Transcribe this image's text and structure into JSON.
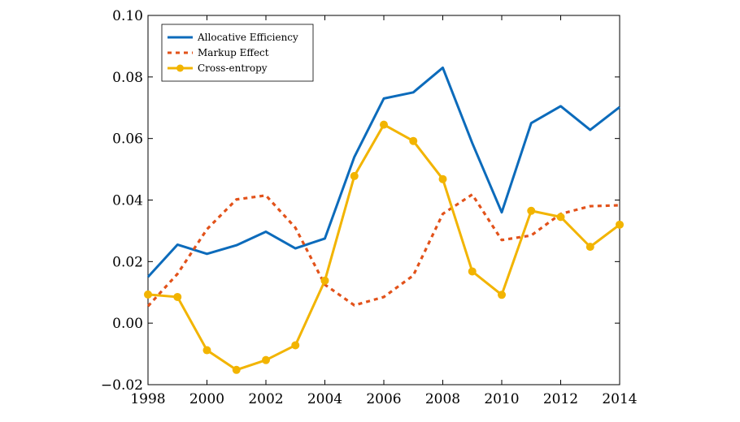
{
  "chart_data": {
    "type": "line",
    "title": "",
    "xlabel": "",
    "ylabel": "",
    "xlim": [
      1998,
      2014
    ],
    "ylim": [
      -0.02,
      0.1
    ],
    "x_ticks": [
      1998,
      2000,
      2002,
      2004,
      2006,
      2008,
      2010,
      2012,
      2014
    ],
    "x_tick_labels": [
      "1998",
      "2000",
      "2002",
      "2004",
      "2006",
      "2008",
      "2010",
      "2012",
      "2014"
    ],
    "y_ticks": [
      -0.02,
      0.0,
      0.02,
      0.04,
      0.06,
      0.08,
      0.1
    ],
    "y_tick_labels": [
      "−0.02",
      "0.00",
      "0.02",
      "0.04",
      "0.06",
      "0.08",
      "0.10"
    ],
    "grid": false,
    "legend_position": "top-left",
    "x": [
      1998,
      1999,
      2000,
      2001,
      2002,
      2003,
      2004,
      2005,
      2006,
      2007,
      2008,
      2009,
      2010,
      2011,
      2012,
      2013,
      2014
    ],
    "series": [
      {
        "name": "Allocative Efficiency",
        "color": "#0c6bbb",
        "style": "solid",
        "marker": "none",
        "values": [
          0.015,
          0.0255,
          0.0225,
          0.0253,
          0.0297,
          0.0243,
          0.0275,
          0.054,
          0.073,
          0.075,
          0.083,
          0.0585,
          0.036,
          0.065,
          0.0705,
          0.0628,
          0.0702
        ]
      },
      {
        "name": "Markup Effect",
        "color": "#e2521a",
        "style": "dotted",
        "marker": "none",
        "values": [
          0.0055,
          0.016,
          0.0305,
          0.0402,
          0.0415,
          0.031,
          0.0125,
          0.0058,
          0.0085,
          0.0155,
          0.0355,
          0.0418,
          0.027,
          0.0285,
          0.0355,
          0.038,
          0.0383
        ]
      },
      {
        "name": "Cross-entropy",
        "color": "#f2b400",
        "style": "solid",
        "marker": "circle",
        "values": [
          0.0093,
          0.0085,
          -0.0088,
          -0.0152,
          -0.012,
          -0.0072,
          0.0138,
          0.0478,
          0.0645,
          0.0592,
          0.0468,
          0.0168,
          0.0092,
          0.0365,
          0.0345,
          0.0248,
          0.032
        ]
      }
    ]
  }
}
